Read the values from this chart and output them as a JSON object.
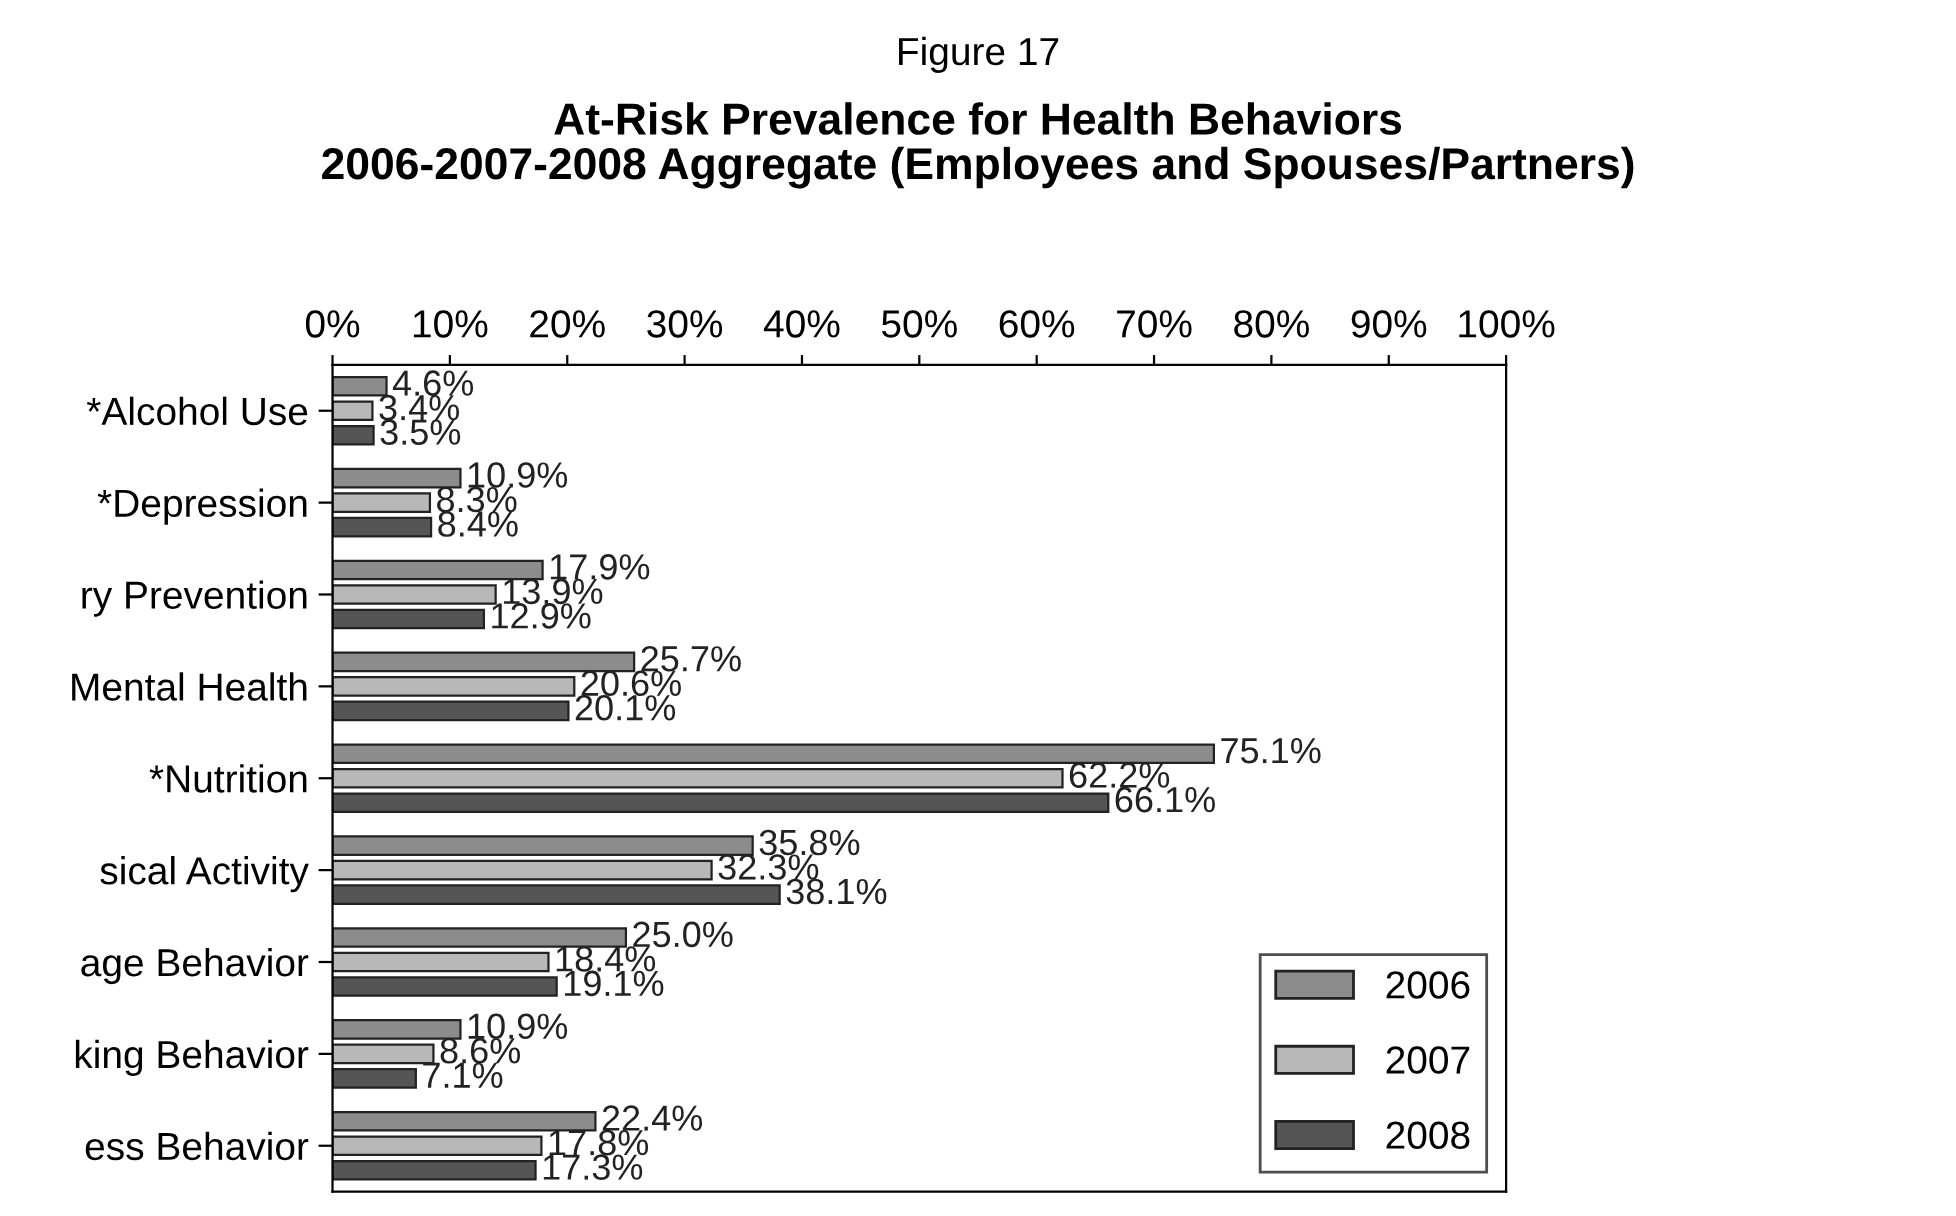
{
  "chart_data": {
    "type": "bar",
    "orientation": "horizontal",
    "title": "At-Risk Prevalence for Health Behaviors\n2006-2007-2008 Aggregate (Employees and Spouses/Partners)",
    "annotations": [
      "Figure 17"
    ],
    "categories": [
      "*Alcohol Use",
      "*Depression",
      "ry Prevention",
      "Mental Health",
      "*Nutrition",
      "sical Activity",
      "age Behavior",
      "king Behavior",
      "ess Behavior"
    ],
    "series": [
      {
        "name": "2006",
        "color": "#8c8c8c",
        "values": [
          4.6,
          10.9,
          17.9,
          25.7,
          75.1,
          35.8,
          25.0,
          10.9,
          22.4
        ],
        "value_labels": [
          "4.6%",
          "10.9%",
          "17.9%",
          "25.7%",
          "75.1%",
          "35.8%",
          "25.0%",
          "10.9%",
          "22.4%"
        ]
      },
      {
        "name": "2007",
        "color": "#b8b8b8",
        "values": [
          3.4,
          8.3,
          13.9,
          20.6,
          62.2,
          32.3,
          18.4,
          8.6,
          17.8
        ],
        "value_labels": [
          "3.4%",
          "8.3%",
          "13.9%",
          "20.6%",
          "62.2%",
          "32.3%",
          "18.4%",
          "8.6%",
          "17.8%"
        ]
      },
      {
        "name": "2008",
        "color": "#555555",
        "values": [
          3.5,
          8.4,
          12.9,
          20.1,
          66.1,
          38.1,
          19.1,
          7.1,
          17.3
        ],
        "value_labels": [
          "3.5%",
          "8.4%",
          "12.9%",
          "20.1%",
          "66.1%",
          "38.1%",
          "19.1%",
          "7.1%",
          "17.3%"
        ]
      }
    ],
    "xlim": [
      0,
      100
    ],
    "xticks": [
      {
        "value": 0,
        "label": "0%"
      },
      {
        "value": 10,
        "label": "10%"
      },
      {
        "value": 20,
        "label": "20%"
      },
      {
        "value": 30,
        "label": "30%"
      },
      {
        "value": 40,
        "label": "40%"
      },
      {
        "value": 50,
        "label": "50%"
      },
      {
        "value": 60,
        "label": "60%"
      },
      {
        "value": 70,
        "label": "70%"
      },
      {
        "value": 80,
        "label": "80%"
      },
      {
        "value": 90,
        "label": "90%"
      },
      {
        "value": 100,
        "label": "100%"
      }
    ],
    "legend": "bottom right",
    "grid": false
  }
}
